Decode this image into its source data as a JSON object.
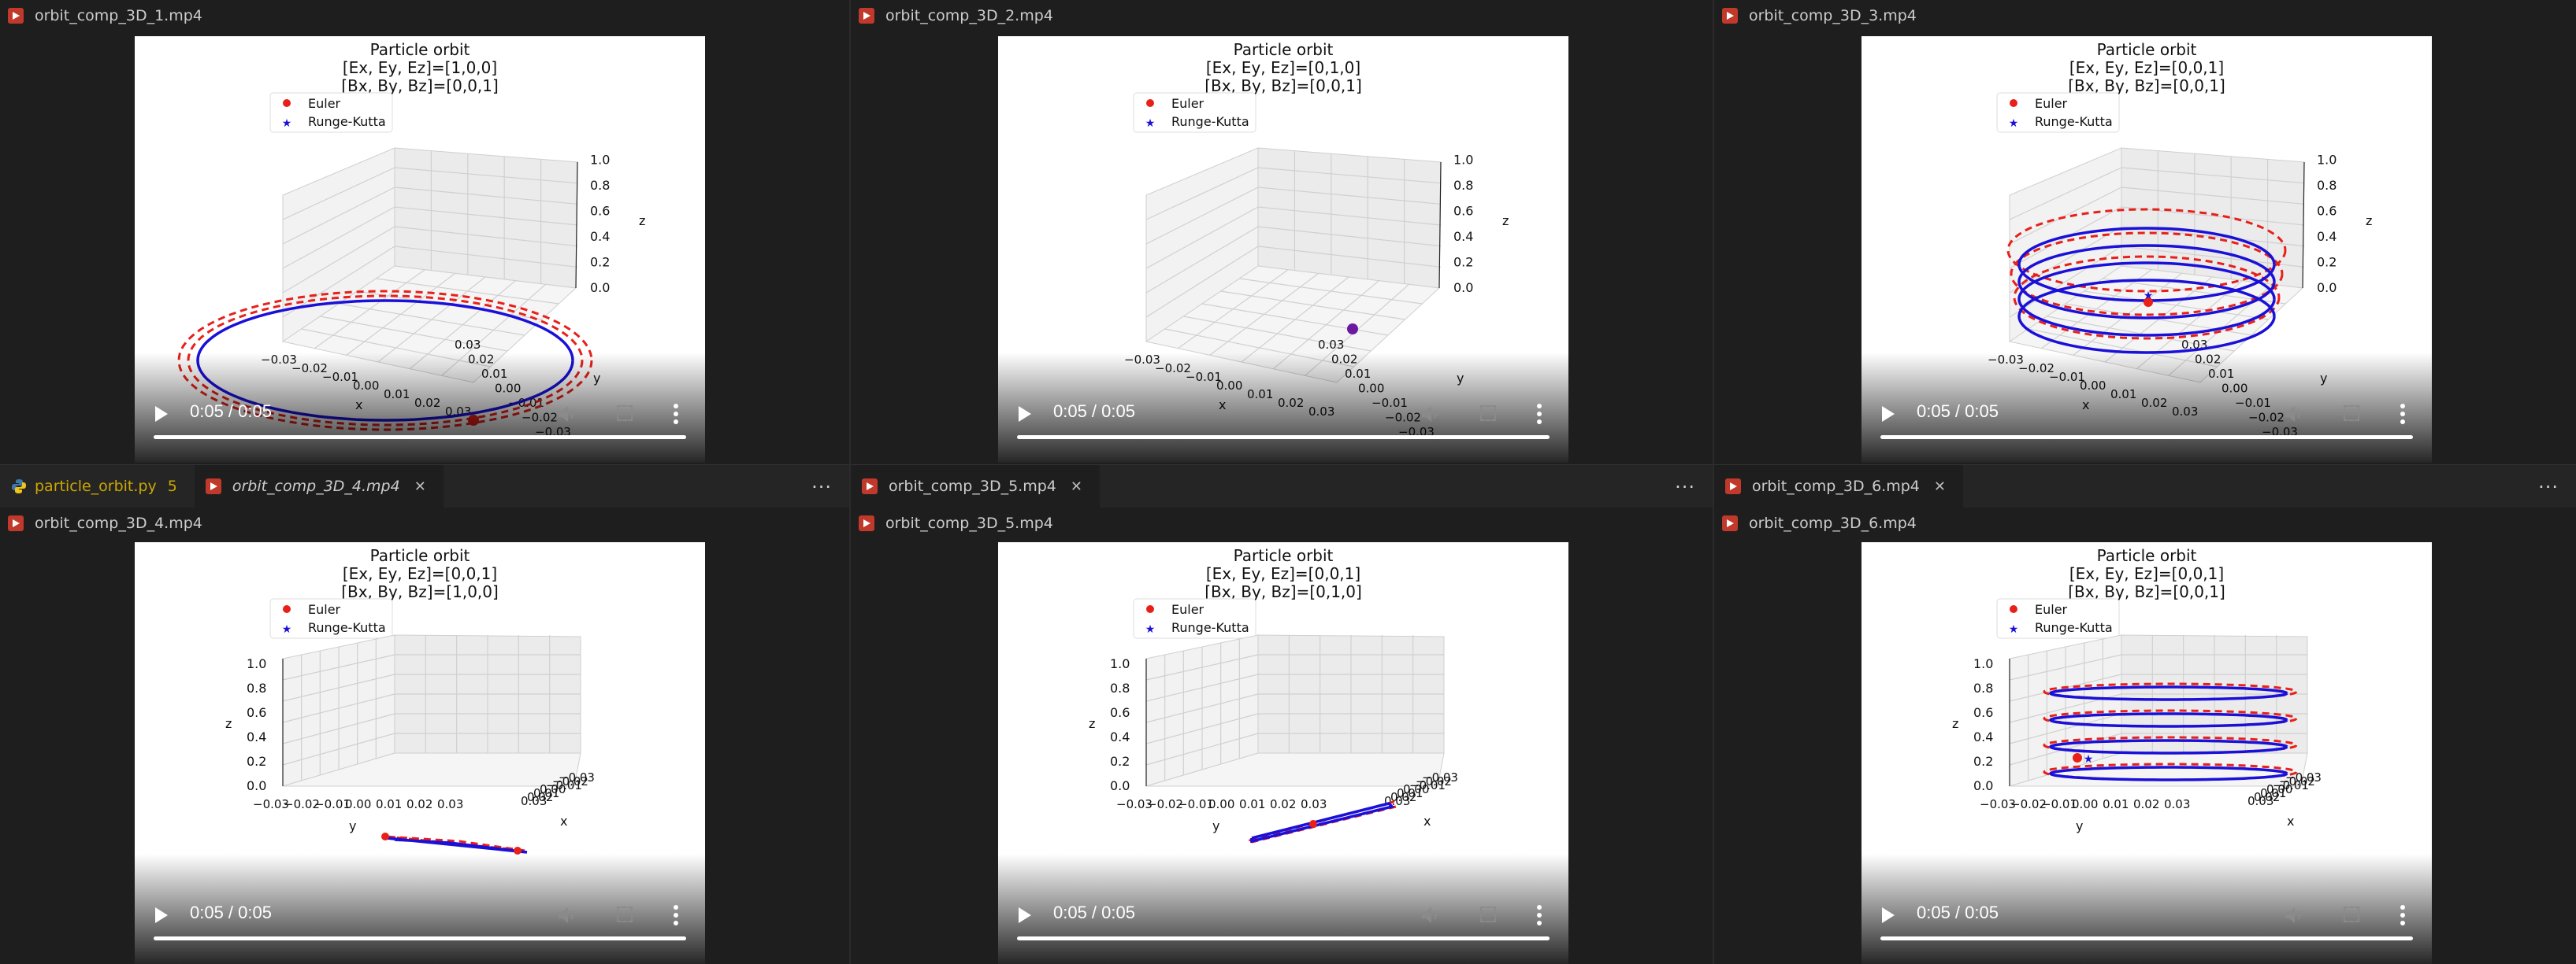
{
  "tabs_row": {
    "left": [
      {
        "label": "particle_orbit.py",
        "badge": "5",
        "icon": "python-icon",
        "style": "modified"
      },
      {
        "label": "orbit_comp_3D_4.mp4",
        "icon": "video-file-icon",
        "italic": true
      }
    ],
    "middle": [
      {
        "label": "orbit_comp_3D_5.mp4",
        "icon": "video-file-icon"
      }
    ],
    "right": [
      {
        "label": "orbit_comp_3D_6.mp4",
        "icon": "video-file-icon"
      }
    ],
    "more_label": "···"
  },
  "panels": [
    {
      "file": "orbit_comp_3D_1.mp4",
      "title": "Particle orbit",
      "line2": "[Ex, Ey, Ez]=[1,0,0]",
      "line3": "[Bx, By, Bz]=[0,0,1]",
      "time": "0:05 / 0:05"
    },
    {
      "file": "orbit_comp_3D_2.mp4",
      "title": "Particle orbit",
      "line2": "[Ex, Ey, Ez]=[0,1,0]",
      "line3": "[Bx, By, Bz]=[0,0,1]",
      "time": "0:05 / 0:05"
    },
    {
      "file": "orbit_comp_3D_3.mp4",
      "title": "Particle orbit",
      "line2": "[Ex, Ey, Ez]=[0,0,1]",
      "line3": "[Bx, By, Bz]=[0,0,1]",
      "time": "0:05 / 0:05"
    },
    {
      "file": "orbit_comp_3D_4.mp4",
      "title": "Particle orbit",
      "line2": "[Ex, Ey, Ez]=[0,0,1]",
      "line3": "[Bx, By, Bz]=[1,0,0]",
      "time": "0:05 / 0:05"
    },
    {
      "file": "orbit_comp_3D_5.mp4",
      "title": "Particle orbit",
      "line2": "[Ex, Ey, Ez]=[0,0,1]",
      "line3": "[Bx, By, Bz]=[0,1,0]",
      "time": "0:05 / 0:05"
    },
    {
      "file": "orbit_comp_3D_6.mp4",
      "title": "Particle orbit",
      "line2": "[Ex, Ey, Ez]=[0,0,1]",
      "line3": "[Bx, By, Bz]=[0,0,1]",
      "time": "0:05 / 0:05"
    }
  ],
  "legend": {
    "euler": "Euler",
    "rk": "Runge-Kutta"
  },
  "colors": {
    "euler": "#e8201a",
    "rk": "#1a10d8",
    "panel_bg": "#1e1e1e",
    "tab_bg": "#252526"
  },
  "view_a": {
    "z_ticks": [
      "0.0",
      "0.2",
      "0.4",
      "0.6",
      "0.8",
      "1.0"
    ],
    "y_ticks": [
      "−0.03",
      "−0.02",
      "−0.01",
      "0.00",
      "0.01",
      "0.02",
      "0.03"
    ],
    "x_ticks": [
      "−0.03",
      "−0.02",
      "−0.01",
      "0.00",
      "0.01",
      "0.02",
      "0.03"
    ],
    "zlabel": "z",
    "ylabel": "y",
    "xlabel": "x"
  },
  "view_b": {
    "z_ticks": [
      "0.0",
      "0.2",
      "0.4",
      "0.6",
      "0.8",
      "1.0"
    ],
    "y_ticks": [
      "−0.03",
      "−0.02",
      "−0.01",
      "0.00",
      "0.01",
      "0.02",
      "0.03"
    ],
    "x_ticks": [
      "0.03",
      "0.02",
      "0.01",
      "0.00",
      "−0.01",
      "−0.02",
      "−0.03"
    ],
    "zlabel": "z",
    "ylabel": "y",
    "xlabel": "x"
  }
}
